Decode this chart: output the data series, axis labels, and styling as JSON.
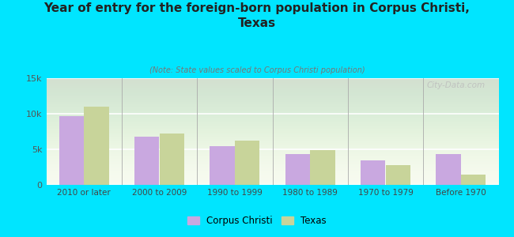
{
  "title": "Year of entry for the foreign-born population in Corpus Christi,\nTexas",
  "subtitle": "(Note: State values scaled to Corpus Christi population)",
  "categories": [
    "2010 or later",
    "2000 to 2009",
    "1990 to 1999",
    "1980 to 1989",
    "1970 to 1979",
    "Before 1970"
  ],
  "corpus_christi": [
    9700,
    6800,
    5400,
    4300,
    3400,
    4300
  ],
  "texas": [
    11000,
    7200,
    6200,
    4900,
    2800,
    1500
  ],
  "bar_color_cc": "#c9a8e0",
  "bar_color_tx": "#c8d49a",
  "background_outer": "#00e5ff",
  "background_inner_top": "#e8f0d8",
  "background_inner_bot": "#f8fbf0",
  "yticks": [
    0,
    5000,
    10000,
    15000
  ],
  "ytick_labels": [
    "0",
    "5k",
    "10k",
    "15k"
  ],
  "ylim": [
    0,
    15000
  ],
  "legend_cc": "Corpus Christi",
  "legend_tx": "Texas",
  "watermark": "City-Data.com"
}
